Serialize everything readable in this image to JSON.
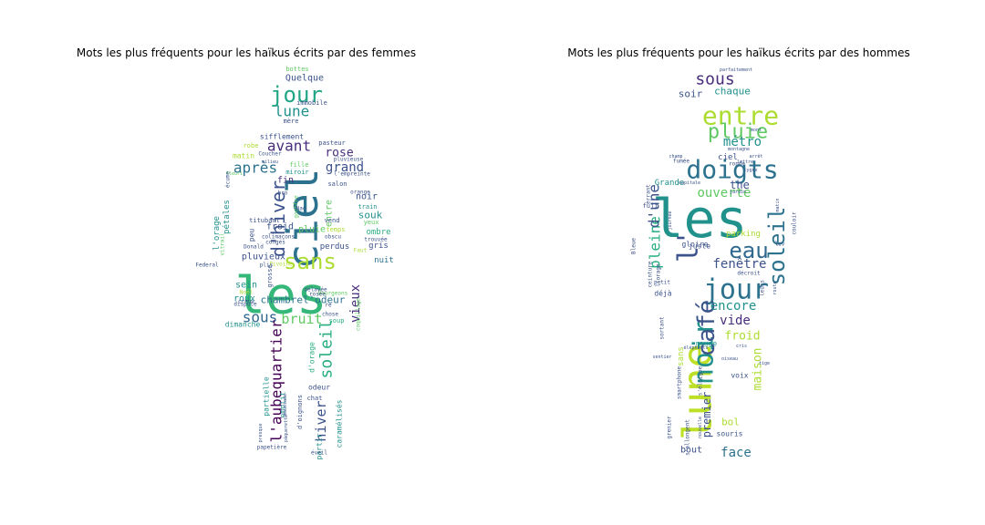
{
  "chart_data": [
    {
      "type": "wordcloud",
      "title": "Mots les plus fréquents pour les haïkus écrits par des femmes",
      "mask": "silhouette-woman",
      "palette": "viridis",
      "words": [
        {
          "text": "les",
          "weight": 1.0,
          "color": "#35b779"
        },
        {
          "text": "ciel",
          "weight": 0.85,
          "color": "#2c728e"
        },
        {
          "text": "jour",
          "weight": 0.55,
          "color": "#21a685"
        },
        {
          "text": "sans",
          "weight": 0.55,
          "color": "#addc30"
        },
        {
          "text": "d'hiver",
          "weight": 0.42,
          "color": "#3b528b"
        },
        {
          "text": "avant",
          "weight": 0.38,
          "color": "#472d7b"
        },
        {
          "text": "après",
          "weight": 0.36,
          "color": "#2c728e"
        },
        {
          "text": "grand",
          "weight": 0.34,
          "color": "#3b528b"
        },
        {
          "text": "rose",
          "weight": 0.32,
          "color": "#472d7b"
        },
        {
          "text": "lune",
          "weight": 0.32,
          "color": "#21918c"
        },
        {
          "text": "sous",
          "weight": 0.3,
          "color": "#31688e"
        },
        {
          "text": "bruit",
          "weight": 0.3,
          "color": "#5ec962"
        },
        {
          "text": "soleil",
          "weight": 0.3,
          "color": "#28ae80"
        },
        {
          "text": "l'aubequartier",
          "weight": 0.3,
          "color": "#440154"
        },
        {
          "text": "hiver",
          "weight": 0.26,
          "color": "#3b528b"
        },
        {
          "text": "vieux",
          "weight": 0.24,
          "color": "#472d7b"
        },
        {
          "text": "chambrel'odeur",
          "weight": 0.22,
          "color": "#2c728e"
        },
        {
          "text": "pluvieux",
          "weight": 0.22,
          "color": "#3b528b"
        },
        {
          "text": "froid",
          "weight": 0.2,
          "color": "#3b528b"
        },
        {
          "text": "souk",
          "weight": 0.2,
          "color": "#21918c"
        },
        {
          "text": "Quelque",
          "weight": 0.18,
          "color": "#3b528b"
        },
        {
          "text": "pétales",
          "weight": 0.18,
          "color": "#21918c"
        },
        {
          "text": "noir",
          "weight": 0.18,
          "color": "#3b528b"
        },
        {
          "text": "roux",
          "weight": 0.18,
          "color": "#21918c"
        },
        {
          "text": "sein",
          "weight": 0.18,
          "color": "#21918c"
        },
        {
          "text": "fin",
          "weight": 0.18,
          "color": "#472d7b"
        },
        {
          "text": "matin",
          "weight": 0.16,
          "color": "#addc30"
        },
        {
          "text": "pluie",
          "weight": 0.16,
          "color": "#5ec962"
        },
        {
          "text": "entre",
          "weight": 0.16,
          "color": "#5ec962"
        },
        {
          "text": "nuit",
          "weight": 0.16,
          "color": "#2c728e"
        },
        {
          "text": "l'orage",
          "weight": 0.16,
          "color": "#21918c"
        },
        {
          "text": "ombre",
          "weight": 0.14,
          "color": "#28ae80"
        },
        {
          "text": "gris",
          "weight": 0.14,
          "color": "#3b528b"
        },
        {
          "text": "perdus",
          "weight": 0.14,
          "color": "#3b528b"
        },
        {
          "text": "sifflement",
          "weight": 0.14,
          "color": "#3b528b"
        },
        {
          "text": "dimanche",
          "weight": 0.14,
          "color": "#21918c"
        },
        {
          "text": "d'orage",
          "weight": 0.14,
          "color": "#28ae80"
        },
        {
          "text": "partielle",
          "weight": 0.14,
          "color": "#21918c"
        },
        {
          "text": "emplit",
          "weight": 0.14,
          "color": "#21918c"
        },
        {
          "text": "caramélisés",
          "weight": 0.14,
          "color": "#21918c"
        },
        {
          "text": "partir",
          "weight": 0.14,
          "color": "#21918c"
        },
        {
          "text": "odeur",
          "weight": 0.13,
          "color": "#3b528b"
        },
        {
          "text": "bottes",
          "weight": 0.12,
          "color": "#5ec962"
        },
        {
          "text": "immobile",
          "weight": 0.12,
          "color": "#3b528b"
        },
        {
          "text": "mère",
          "weight": 0.12,
          "color": "#3b528b"
        },
        {
          "text": "pasteur",
          "weight": 0.12,
          "color": "#3b528b"
        },
        {
          "text": "robe",
          "weight": 0.12,
          "color": "#addc30"
        },
        {
          "text": "fille",
          "weight": 0.12,
          "color": "#5ec962"
        },
        {
          "text": "miroir",
          "weight": 0.12,
          "color": "#21918c"
        },
        {
          "text": "salon",
          "weight": 0.12,
          "color": "#3b528b"
        },
        {
          "text": "train",
          "weight": 0.12,
          "color": "#21918c"
        },
        {
          "text": "yeux",
          "weight": 0.12,
          "color": "#5ec962"
        },
        {
          "text": "temps",
          "weight": 0.12,
          "color": "#addc30"
        },
        {
          "text": "vend",
          "weight": 0.12,
          "color": "#3b528b"
        },
        {
          "text": "titubant",
          "weight": 0.12,
          "color": "#3b528b"
        },
        {
          "text": "peu",
          "weight": 0.12,
          "color": "#3b528b"
        },
        {
          "text": "grosse",
          "weight": 0.12,
          "color": "#3b528b"
        },
        {
          "text": "chat",
          "weight": 0.12,
          "color": "#3b528b"
        },
        {
          "text": "soup",
          "weight": 0.12,
          "color": "#28ae80"
        },
        {
          "text": "coquillage",
          "weight": 0.12,
          "color": "#5ec962"
        },
        {
          "text": "d'oignons",
          "weight": 0.12,
          "color": "#3b528b"
        },
        {
          "text": "bro",
          "weight": 0.1,
          "color": "#3b528b"
        },
        {
          "text": "gouffre",
          "weight": 0.1,
          "color": "#5ec962"
        },
        {
          "text": "Bourgeons",
          "weight": 0.1,
          "color": "#5ec962"
        },
        {
          "text": "chose",
          "weight": 0.1,
          "color": "#3b528b"
        },
        {
          "text": "Coucher",
          "weight": 0.1,
          "color": "#3b528b"
        },
        {
          "text": "pluvieuse",
          "weight": 0.1,
          "color": "#3b528b"
        },
        {
          "text": "l'empreinte",
          "weight": 0.1,
          "color": "#3b528b"
        },
        {
          "text": "orange",
          "weight": 0.1,
          "color": "#3b528b"
        },
        {
          "text": "Nac",
          "weight": 0.1,
          "color": "#3b528b"
        },
        {
          "text": "colimaçons",
          "weight": 0.1,
          "color": "#3b528b"
        },
        {
          "text": "congés",
          "weight": 0.1,
          "color": "#3b528b"
        },
        {
          "text": "obscu",
          "weight": 0.1,
          "color": "#3b528b"
        },
        {
          "text": "Faut",
          "weight": 0.1,
          "color": "#addc30"
        },
        {
          "text": "trouvée",
          "weight": 0.1,
          "color": "#3b528b"
        },
        {
          "text": "vitrail",
          "weight": 0.1,
          "color": "#5ec962"
        },
        {
          "text": "Federal",
          "weight": 0.1,
          "color": "#3b528b"
        },
        {
          "text": "Donald",
          "weight": 0.1,
          "color": "#3b528b"
        },
        {
          "text": "Noël",
          "weight": 0.1,
          "color": "#addc30"
        },
        {
          "text": "dispute",
          "weight": 0.1,
          "color": "#3b528b"
        },
        {
          "text": "creux",
          "weight": 0.1,
          "color": "#3b528b"
        },
        {
          "text": "maussade",
          "weight": 0.1,
          "color": "#3b528b"
        },
        {
          "text": "papetière",
          "weight": 0.1,
          "color": "#3b528b"
        },
        {
          "text": "presque",
          "weight": 0.1,
          "color": "#3b528b"
        },
        {
          "text": "éveil",
          "weight": 0.1,
          "color": "#3b528b"
        },
        {
          "text": "re",
          "weight": 0.1,
          "color": "#3b528b"
        },
        {
          "text": "rosée",
          "weight": 0.1,
          "color": "#3b528b"
        },
        {
          "text": "Pivoine",
          "weight": 0.1,
          "color": "#addc30"
        },
        {
          "text": "Fleuri",
          "weight": 0.1,
          "color": "#5ec962"
        },
        {
          "text": "milieu",
          "weight": 0.1,
          "color": "#3b528b"
        },
        {
          "text": "écume",
          "weight": 0.1,
          "color": "#3b528b"
        },
        {
          "text": "plis",
          "weight": 0.1,
          "color": "#3b528b"
        },
        {
          "text": "délavée",
          "weight": 0.1,
          "color": "#3b528b"
        },
        {
          "text": "pâquerette",
          "weight": 0.1,
          "color": "#3b528b"
        }
      ]
    },
    {
      "type": "wordcloud",
      "title": "Mots les plus fréquents pour les haïkus écrits par des hommes",
      "mask": "silhouette-man",
      "palette": "viridis",
      "words": [
        {
          "text": "les",
          "weight": 1.0,
          "color": "#21918c"
        },
        {
          "text": "lune",
          "weight": 0.8,
          "color": "#bddf26"
        },
        {
          "text": "jour",
          "weight": 0.6,
          "color": "#2c728e"
        },
        {
          "text": "noir",
          "weight": 0.5,
          "color": "#21918c"
        },
        {
          "text": "café",
          "weight": 0.5,
          "color": "#3b528b"
        },
        {
          "text": "entre",
          "weight": 0.5,
          "color": "#addc30"
        },
        {
          "text": "doigts",
          "weight": 0.45,
          "color": "#2c728e"
        },
        {
          "text": "l'",
          "weight": 0.45,
          "color": "#3b528b"
        },
        {
          "text": "eau",
          "weight": 0.42,
          "color": "#31688e"
        },
        {
          "text": "soleil",
          "weight": 0.4,
          "color": "#2c728e"
        },
        {
          "text": "pluie",
          "weight": 0.38,
          "color": "#5ec962"
        },
        {
          "text": "sous",
          "weight": 0.3,
          "color": "#472d7b"
        },
        {
          "text": "pleine",
          "weight": 0.3,
          "color": "#28ae80"
        },
        {
          "text": "d'une",
          "weight": 0.28,
          "color": "#3b528b"
        },
        {
          "text": "fenêtre",
          "weight": 0.28,
          "color": "#3b528b"
        },
        {
          "text": "métro",
          "weight": 0.24,
          "color": "#21918c"
        },
        {
          "text": "ouverte",
          "weight": 0.22,
          "color": "#5ec962"
        },
        {
          "text": "encore",
          "weight": 0.22,
          "color": "#21918c"
        },
        {
          "text": "face",
          "weight": 0.22,
          "color": "#2c728e"
        },
        {
          "text": "vide",
          "weight": 0.2,
          "color": "#472d7b"
        },
        {
          "text": "froid",
          "weight": 0.2,
          "color": "#addc30"
        },
        {
          "text": "maison",
          "weight": 0.2,
          "color": "#addc30"
        },
        {
          "text": "the",
          "weight": 0.2,
          "color": "#3b528b"
        },
        {
          "text": "premier",
          "weight": 0.18,
          "color": "#3b528b"
        },
        {
          "text": "chaque",
          "weight": 0.16,
          "color": "#21918c"
        },
        {
          "text": "soir",
          "weight": 0.16,
          "color": "#3b528b"
        },
        {
          "text": "bol",
          "weight": 0.16,
          "color": "#addc30"
        },
        {
          "text": "bout",
          "weight": 0.16,
          "color": "#3b528b"
        },
        {
          "text": "sans",
          "weight": 0.15,
          "color": "#addc30"
        },
        {
          "text": "parking",
          "weight": 0.14,
          "color": "#addc30"
        },
        {
          "text": "Grande",
          "weight": 0.14,
          "color": "#21918c"
        },
        {
          "text": "ciel",
          "weight": 0.14,
          "color": "#3b528b"
        },
        {
          "text": "juste",
          "weight": 0.14,
          "color": "#3b528b"
        },
        {
          "text": "gloire",
          "weight": 0.13,
          "color": "#3b528b"
        },
        {
          "text": "fuji",
          "weight": 0.12,
          "color": "#3b528b"
        },
        {
          "text": "rouge",
          "weight": 0.12,
          "color": "#21918c"
        },
        {
          "text": "voix",
          "weight": 0.12,
          "color": "#3b528b"
        },
        {
          "text": "souris",
          "weight": 0.12,
          "color": "#3b528b"
        },
        {
          "text": "déjà",
          "weight": 0.12,
          "color": "#3b528b"
        },
        {
          "text": "ronde",
          "weight": 0.1,
          "color": "#3b528b"
        },
        {
          "text": "liv",
          "weight": 0.1,
          "color": "#3b528b"
        },
        {
          "text": "couloir",
          "weight": 0.1,
          "color": "#3b528b"
        },
        {
          "text": "décroit",
          "weight": 0.1,
          "color": "#3b528b"
        },
        {
          "text": "petit",
          "weight": 0.1,
          "color": "#3b528b"
        },
        {
          "text": "fumée",
          "weight": 0.1,
          "color": "#3b528b"
        },
        {
          "text": "errant",
          "weight": 0.1,
          "color": "#3b528b"
        },
        {
          "text": "Bleue",
          "weight": 0.1,
          "color": "#3b528b"
        },
        {
          "text": "grenier",
          "weight": 0.1,
          "color": "#3b528b"
        },
        {
          "text": "l'orage",
          "weight": 0.1,
          "color": "#3b528b"
        },
        {
          "text": "sortant",
          "weight": 0.1,
          "color": "#3b528b"
        },
        {
          "text": "smartphone",
          "weight": 0.1,
          "color": "#3b528b"
        },
        {
          "text": "s'éloigne",
          "weight": 0.1,
          "color": "#3b528b"
        },
        {
          "text": "s'allongent",
          "weight": 0.1,
          "color": "#3b528b"
        },
        {
          "text": "parfaitement",
          "weight": 0.1,
          "color": "#3b528b"
        },
        {
          "text": "ceinture",
          "weight": 0.1,
          "color": "#3b528b"
        },
        {
          "text": "montagne",
          "weight": 0.1,
          "color": "#3b528b"
        },
        {
          "text": "capitale",
          "weight": 0.1,
          "color": "#3b528b"
        },
        {
          "text": "jardin",
          "weight": 0.1,
          "color": "#3b528b"
        },
        {
          "text": "matin",
          "weight": 0.1,
          "color": "#3b528b"
        },
        {
          "text": "leurs",
          "weight": 0.1,
          "color": "#3b528b"
        },
        {
          "text": "route",
          "weight": 0.1,
          "color": "#3b528b"
        },
        {
          "text": "nouvelle",
          "weight": 0.1,
          "color": "#3b528b"
        },
        {
          "text": "éléphants",
          "weight": 0.1,
          "color": "#3b528b"
        },
        {
          "text": "journée",
          "weight": 0.1,
          "color": "#3b528b"
        },
        {
          "text": "champ",
          "weight": 0.1,
          "color": "#3b528b"
        },
        {
          "text": "lettre",
          "weight": 0.1,
          "color": "#3b528b"
        },
        {
          "text": "arrêt",
          "weight": 0.1,
          "color": "#3b528b"
        },
        {
          "text": "mont",
          "weight": 0.1,
          "color": "#3b528b"
        },
        {
          "text": "cygne",
          "weight": 0.1,
          "color": "#3b528b"
        },
        {
          "text": "cris",
          "weight": 0.1,
          "color": "#3b528b"
        },
        {
          "text": "oiseau",
          "weight": 0.1,
          "color": "#3b528b"
        },
        {
          "text": "tige",
          "weight": 0.1,
          "color": "#3b528b"
        },
        {
          "text": "sentier",
          "weight": 0.1,
          "color": "#3b528b"
        }
      ]
    }
  ]
}
